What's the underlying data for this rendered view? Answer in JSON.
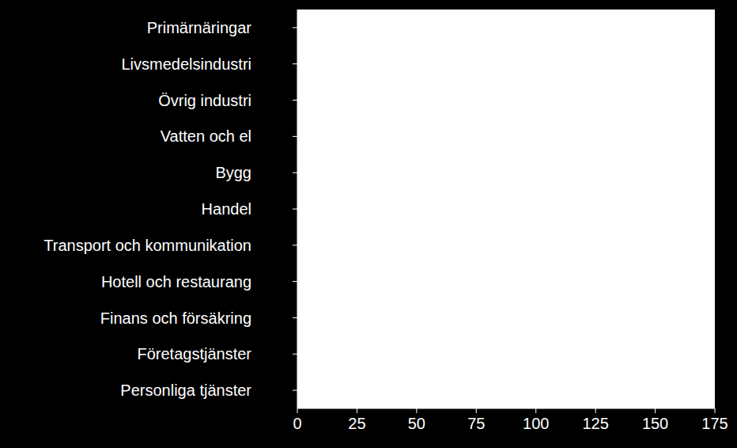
{
  "chart_data": {
    "type": "bar",
    "orientation": "horizontal",
    "categories": [
      "Primärnäringar",
      "Livsmedelsindustri",
      "Övrig industri",
      "Vatten och el",
      "Bygg",
      "Handel",
      "Transport och kommunikation",
      "Hotell och restaurang",
      "Finans och försäkring",
      "Företagstjänster",
      "Personliga tjänster"
    ],
    "values": [
      null,
      null,
      null,
      null,
      null,
      null,
      null,
      null,
      null,
      null,
      null
    ],
    "xlim": [
      0,
      175
    ],
    "xticks": [
      0,
      25,
      50,
      75,
      100,
      125,
      150,
      175
    ],
    "grid": false
  }
}
